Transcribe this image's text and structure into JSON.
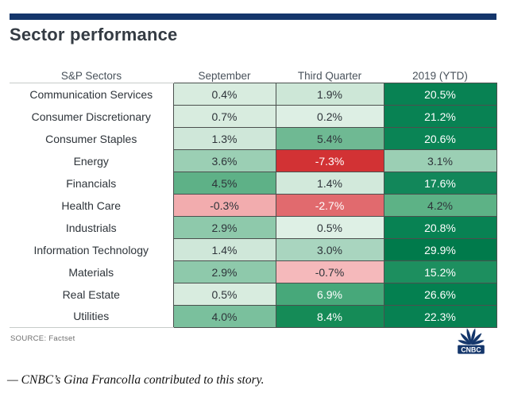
{
  "title": "Sector performance",
  "source": "SOURCE: Factset",
  "footnote": "— CNBC’s Gina Francolla contributed to this story.",
  "logo": {
    "name": "cnbc-peacock-logo",
    "wordmark": "CNBC"
  },
  "colors": {
    "top_bar": "#14366b",
    "navy": "#14366b",
    "cell_border": "#4b504e",
    "cell_text_dark": "#2e343a",
    "cell_text_light": "#ffffff",
    "dark_green": "#088253",
    "strong_red": "#d23234"
  },
  "table": {
    "headers": [
      "S&P Sectors",
      "September",
      "Third Quarter",
      "2019 (YTD)"
    ],
    "rows": [
      {
        "sector": "Communication Services",
        "cells": [
          {
            "text": "0.4%",
            "bg": "#d8ecdf",
            "fg": "dark"
          },
          {
            "text": "1.9%",
            "bg": "#cde7d7",
            "fg": "dark"
          },
          {
            "text": "20.5%",
            "bg": "#088253",
            "fg": "light"
          }
        ]
      },
      {
        "sector": "Consumer Discretionary",
        "cells": [
          {
            "text": "0.7%",
            "bg": "#d8ecdf",
            "fg": "dark"
          },
          {
            "text": "0.2%",
            "bg": "#ddefe4",
            "fg": "dark"
          },
          {
            "text": "21.2%",
            "bg": "#088253",
            "fg": "light"
          }
        ]
      },
      {
        "sector": "Consumer Staples",
        "cells": [
          {
            "text": "1.3%",
            "bg": "#cfe7d9",
            "fg": "dark"
          },
          {
            "text": "5.4%",
            "bg": "#6fb993",
            "fg": "dark"
          },
          {
            "text": "20.6%",
            "bg": "#0a8455",
            "fg": "light"
          }
        ]
      },
      {
        "sector": "Energy",
        "cells": [
          {
            "text": "3.6%",
            "bg": "#9bcfb4",
            "fg": "dark"
          },
          {
            "text": "-7.3%",
            "bg": "#d23234",
            "fg": "light"
          },
          {
            "text": "3.1%",
            "bg": "#9bcfb4",
            "fg": "dark"
          }
        ]
      },
      {
        "sector": "Financials",
        "cells": [
          {
            "text": "4.5%",
            "bg": "#5eb187",
            "fg": "dark"
          },
          {
            "text": "1.4%",
            "bg": "#d2e9db",
            "fg": "dark"
          },
          {
            "text": "17.6%",
            "bg": "#12875a",
            "fg": "light"
          }
        ]
      },
      {
        "sector": "Health Care",
        "cells": [
          {
            "text": "-0.3%",
            "bg": "#f2acae",
            "fg": "dark"
          },
          {
            "text": "-2.7%",
            "bg": "#e16a6e",
            "fg": "light"
          },
          {
            "text": "4.2%",
            "bg": "#5db286",
            "fg": "dark"
          }
        ]
      },
      {
        "sector": "Industrials",
        "cells": [
          {
            "text": "2.9%",
            "bg": "#8ec9ab",
            "fg": "dark"
          },
          {
            "text": "0.5%",
            "bg": "#def0e5",
            "fg": "dark"
          },
          {
            "text": "20.8%",
            "bg": "#088253",
            "fg": "light"
          }
        ]
      },
      {
        "sector": "Information Technology",
        "cells": [
          {
            "text": "1.4%",
            "bg": "#cfe7d9",
            "fg": "dark"
          },
          {
            "text": "3.0%",
            "bg": "#a9d5bf",
            "fg": "dark"
          },
          {
            "text": "29.9%",
            "bg": "#007a4b",
            "fg": "light"
          }
        ]
      },
      {
        "sector": "Materials",
        "cells": [
          {
            "text": "2.9%",
            "bg": "#8ec9ab",
            "fg": "dark"
          },
          {
            "text": "-0.7%",
            "bg": "#f5b9bb",
            "fg": "dark"
          },
          {
            "text": "15.2%",
            "bg": "#1d8f5f",
            "fg": "light"
          }
        ]
      },
      {
        "sector": "Real Estate",
        "cells": [
          {
            "text": "0.5%",
            "bg": "#d8ecdf",
            "fg": "dark"
          },
          {
            "text": "6.9%",
            "bg": "#47a87a",
            "fg": "light"
          },
          {
            "text": "26.6%",
            "bg": "#048050",
            "fg": "light"
          }
        ]
      },
      {
        "sector": "Utilities",
        "cells": [
          {
            "text": "4.0%",
            "bg": "#7ac09d",
            "fg": "dark"
          },
          {
            "text": "8.4%",
            "bg": "#158b57",
            "fg": "light"
          },
          {
            "text": "22.3%",
            "bg": "#078152",
            "fg": "light"
          }
        ]
      }
    ]
  },
  "chart_data": {
    "type": "table",
    "title": "Sector performance",
    "columns": [
      "S&P Sectors",
      "September",
      "Third Quarter",
      "2019 (YTD)"
    ],
    "categories": [
      "Communication Services",
      "Consumer Discretionary",
      "Consumer Staples",
      "Energy",
      "Financials",
      "Health Care",
      "Industrials",
      "Information Technology",
      "Materials",
      "Real Estate",
      "Utilities"
    ],
    "series": [
      {
        "name": "September",
        "values": [
          0.4,
          0.7,
          1.3,
          3.6,
          4.5,
          -0.3,
          2.9,
          1.4,
          2.9,
          0.5,
          4.0
        ]
      },
      {
        "name": "Third Quarter",
        "values": [
          1.9,
          0.2,
          5.4,
          -7.3,
          1.4,
          -2.7,
          0.5,
          3.0,
          -0.7,
          6.9,
          8.4
        ]
      },
      {
        "name": "2019 (YTD)",
        "values": [
          20.5,
          21.2,
          20.6,
          3.1,
          17.6,
          4.2,
          20.8,
          29.9,
          15.2,
          26.6,
          22.3
        ]
      }
    ],
    "units": "percent",
    "source": "SOURCE: Factset",
    "color_coding": "green = positive (darker = larger gain), red = negative (darker = larger loss)"
  }
}
